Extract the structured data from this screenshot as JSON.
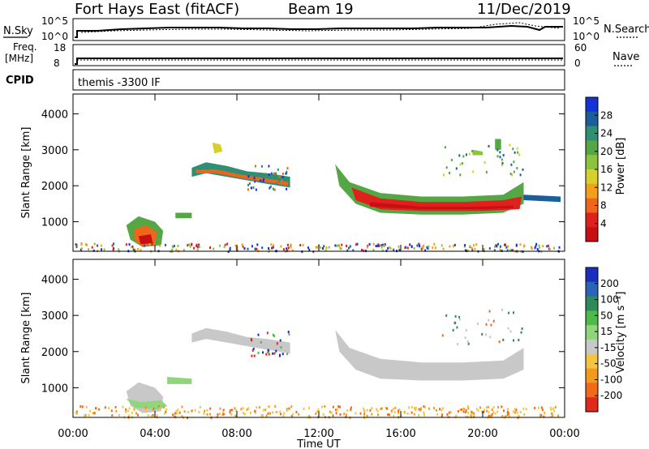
{
  "header": {
    "station": "Fort Hays East (fitACF)",
    "beam": "Beam 19",
    "date": "11/Dec/2019"
  },
  "panels": {
    "nsky_label": "N.Sky",
    "nsearch_label": "N.Search",
    "nsky_ticks": [
      "10^5",
      "10^0"
    ],
    "nsearch_ticks": [
      "10^5",
      "10^0"
    ],
    "freq_label_1": "Freq.",
    "freq_label_2": "[MHz]",
    "freq_ticks": [
      "18",
      "8"
    ],
    "nave_label": "Nave",
    "nave_ticks": [
      "60",
      "0"
    ],
    "cpid_label": "CPID",
    "cpid_text": "themis -3300 IF"
  },
  "chart_data": [
    {
      "type": "heatmap",
      "name": "power",
      "ylabel": "Slant Range [km]",
      "yticks": [
        "4000",
        "3000",
        "2000",
        "1000"
      ],
      "ylim": [
        180,
        4550
      ],
      "colorbar_label": "Power [dB]",
      "colorbar_ticks": [
        "28",
        "24",
        "20",
        "16",
        "12",
        "8",
        "4"
      ],
      "colorbar_colors": [
        "#1433d6",
        "#1b5e9a",
        "#2f8f73",
        "#55a645",
        "#8cc33c",
        "#d7d02a",
        "#f2a01a",
        "#f0651c",
        "#e0201c",
        "#c80f12"
      ]
    },
    {
      "type": "heatmap",
      "name": "velocity",
      "ylabel": "Slant Range [km]",
      "yticks": [
        "4000",
        "3000",
        "2000",
        "1000"
      ],
      "ylim": [
        180,
        4550
      ],
      "xlabel": "Time UT",
      "xticks": [
        "00:00",
        "04:00",
        "08:00",
        "12:00",
        "16:00",
        "20:00",
        "00:00"
      ],
      "colorbar_label": "Velocity [m s⁻¹]",
      "colorbar_ticks": [
        "200",
        "100",
        "50",
        "15",
        "-15",
        "-50",
        "-100",
        "-200"
      ],
      "colorbar_colors": [
        "#1b2fbf",
        "#2a63b8",
        "#2f8a5a",
        "#4fb94a",
        "#8fd67a",
        "#c8c8c8",
        "#f5c542",
        "#f29a1c",
        "#f06a1a",
        "#e0281c"
      ]
    }
  ]
}
